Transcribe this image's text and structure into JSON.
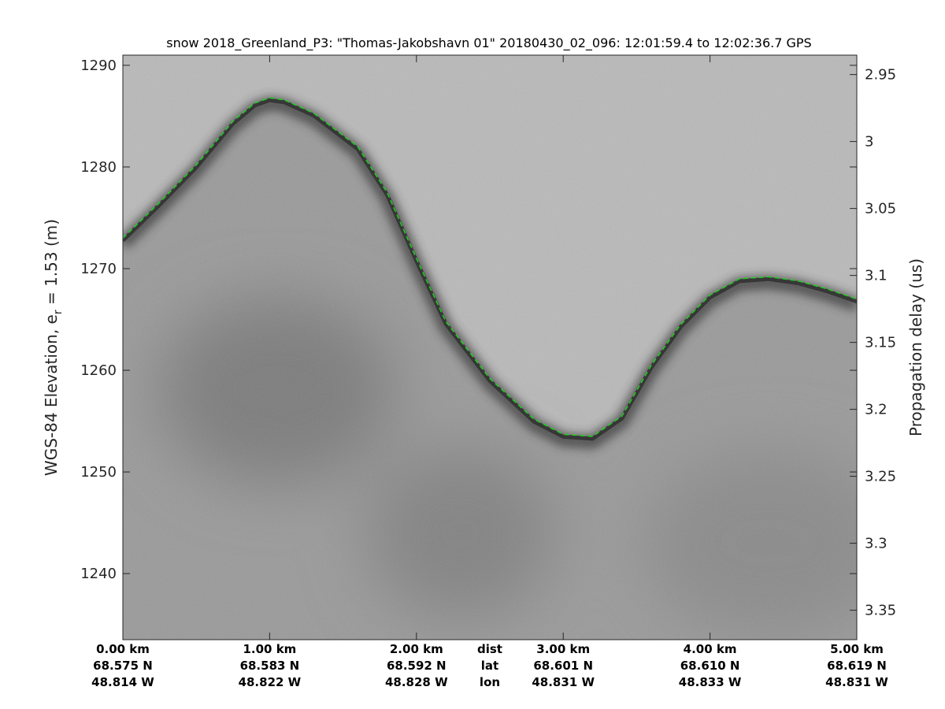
{
  "chart_data": {
    "type": "line",
    "title": "snow 2018_Greenland_P3: \"Thomas-Jakobshavn 01\"  20180430_02_096: 12:01:59.4 to 12:02:36.7 GPS",
    "ylabel_left": "WGS-84 Elevation, e",
    "ylabel_left_sub": "r",
    "ylabel_left_suffix": " = 1.53 (m)",
    "ylabel_right": "Propagation delay (us)",
    "xlim": [
      0,
      5
    ],
    "ylim_left": [
      1233.5,
      1291
    ],
    "ylim_right": [
      2.9355,
      3.372
    ],
    "yticks_left": [
      1240,
      1250,
      1260,
      1270,
      1280,
      1290
    ],
    "yticks_right": [
      2.95,
      3,
      3.05,
      3.1,
      3.15,
      3.2,
      3.25,
      3.3,
      3.35
    ],
    "yticklabels_right": [
      "2.95",
      "3",
      "3.05",
      "3.1",
      "3.15",
      "3.2",
      "3.25",
      "3.3",
      "3.35"
    ],
    "grid": false,
    "background": "radar echogram (grayscale)",
    "x_ticks": [
      {
        "x": 0,
        "dist": "0.00 km",
        "lat": "68.575 N",
        "lon": "48.814 W"
      },
      {
        "x": 1,
        "dist": "1.00 km",
        "lat": "68.583 N",
        "lon": "48.822 W"
      },
      {
        "x": 2,
        "dist": "2.00 km",
        "lat": "68.592 N",
        "lon": "48.828 W"
      },
      {
        "x": 3,
        "dist": "3.00 km",
        "lat": "68.601 N",
        "lon": "48.831 W"
      },
      {
        "x": 4,
        "dist": "4.00 km",
        "lat": "68.610 N",
        "lon": "48.833 W"
      },
      {
        "x": 5,
        "dist": "5.00 km",
        "lat": "68.619 N",
        "lon": "48.831 W"
      }
    ],
    "x_row_labels": [
      "dist",
      "lat",
      "lon"
    ],
    "series": [
      {
        "style": "dashed",
        "color": "#22cc22",
        "x": [
          0,
          0.25,
          0.5,
          0.75,
          0.9,
          1.0,
          1.1,
          1.3,
          1.6,
          1.8,
          2.0,
          2.2,
          2.5,
          2.8,
          3.0,
          3.2,
          3.4,
          3.6,
          3.8,
          4.0,
          4.2,
          4.4,
          4.6,
          4.8,
          5.0
        ],
        "y": [
          1273,
          1276.5,
          1280.2,
          1284.5,
          1286.3,
          1286.8,
          1286.6,
          1285.3,
          1282,
          1277.5,
          1271,
          1264.8,
          1259.2,
          1255.2,
          1253.7,
          1253.5,
          1255.5,
          1260.5,
          1264.5,
          1267.4,
          1269,
          1269.2,
          1268.8,
          1268,
          1267
        ]
      }
    ]
  }
}
